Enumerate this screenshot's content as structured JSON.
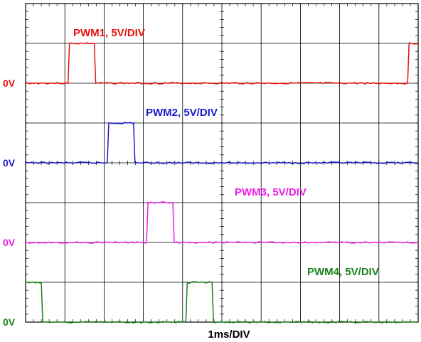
{
  "chart_data": {
    "type": "line",
    "title": "",
    "xlabel": "1ms/DIV",
    "x_divisions": 10,
    "x_range_ms": [
      0,
      10
    ],
    "grid": true,
    "channels": [
      {
        "name": "PWM1, 5V/DIV",
        "color": "#e8110f",
        "zero_label": "0V",
        "high_volts": 5,
        "pulses_ms": [
          [
            1.1,
            1.75
          ],
          [
            9.75,
            10
          ]
        ]
      },
      {
        "name": "PWM2, 5V/DIV",
        "color": "#1a1acc",
        "zero_label": "0V",
        "high_volts": 5,
        "pulses_ms": [
          [
            2.1,
            2.75
          ]
        ]
      },
      {
        "name": "PWM3, 5V/DIV",
        "color": "#f01de6",
        "zero_label": "0V",
        "high_volts": 5,
        "pulses_ms": [
          [
            3.1,
            3.75
          ]
        ]
      },
      {
        "name": "PWM4, 5V/DIV",
        "color": "#1c821c",
        "zero_label": "0V",
        "high_volts": 5,
        "pulses_ms": [
          [
            0,
            0.4
          ],
          [
            4.1,
            4.75
          ]
        ]
      }
    ]
  }
}
